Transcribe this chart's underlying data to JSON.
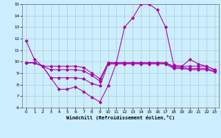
{
  "xlabel": "Windchill (Refroidissement éolien,°C)",
  "xlim": [
    -0.5,
    23.5
  ],
  "ylim": [
    6,
    15
  ],
  "yticks": [
    6,
    7,
    8,
    9,
    10,
    11,
    12,
    13,
    14,
    15
  ],
  "xticks": [
    0,
    1,
    2,
    3,
    4,
    5,
    6,
    7,
    8,
    9,
    10,
    11,
    12,
    13,
    14,
    15,
    16,
    17,
    18,
    19,
    20,
    21,
    22,
    23
  ],
  "background_color": "#cceeff",
  "grid_color": "#aacccc",
  "line_color": "#aa00aa",
  "lines": [
    {
      "x": [
        0,
        1,
        2,
        3,
        4,
        5,
        6,
        7,
        8,
        9,
        10,
        11,
        12,
        13,
        14,
        15,
        16,
        17,
        18,
        19,
        20,
        21,
        22,
        23
      ],
      "y": [
        11.8,
        10.2,
        9.6,
        8.6,
        7.6,
        7.6,
        7.8,
        7.4,
        6.9,
        6.5,
        7.9,
        9.9,
        13.0,
        13.8,
        15.0,
        15.0,
        14.5,
        13.0,
        9.7,
        9.6,
        10.2,
        9.8,
        9.6,
        9.3
      ]
    },
    {
      "x": [
        0,
        1,
        2,
        3,
        4,
        5,
        6,
        7,
        8,
        9,
        10,
        11,
        12,
        13,
        14,
        15,
        16,
        17,
        18,
        19,
        20,
        21,
        22,
        23
      ],
      "y": [
        9.9,
        9.9,
        9.6,
        9.6,
        9.6,
        9.6,
        9.6,
        9.5,
        9.0,
        8.5,
        9.9,
        9.9,
        9.9,
        9.9,
        9.9,
        9.9,
        9.9,
        9.9,
        9.6,
        9.6,
        9.6,
        9.6,
        9.6,
        9.3
      ]
    },
    {
      "x": [
        0,
        1,
        2,
        3,
        4,
        5,
        6,
        7,
        8,
        9,
        10,
        11,
        12,
        13,
        14,
        15,
        16,
        17,
        18,
        19,
        20,
        21,
        22,
        23
      ],
      "y": [
        9.9,
        9.9,
        9.6,
        9.3,
        9.3,
        9.3,
        9.3,
        9.2,
        8.8,
        8.3,
        9.9,
        9.9,
        9.9,
        9.9,
        9.9,
        9.9,
        9.9,
        9.9,
        9.5,
        9.5,
        9.4,
        9.4,
        9.4,
        9.2
      ]
    },
    {
      "x": [
        0,
        1,
        2,
        3,
        4,
        5,
        6,
        7,
        8,
        9,
        10,
        11,
        12,
        13,
        14,
        15,
        16,
        17,
        18,
        19,
        20,
        21,
        22,
        23
      ],
      "y": [
        9.9,
        9.9,
        9.6,
        8.6,
        8.6,
        8.6,
        8.6,
        8.5,
        8.1,
        7.9,
        9.8,
        9.8,
        9.8,
        9.8,
        9.8,
        9.8,
        9.8,
        9.8,
        9.4,
        9.4,
        9.3,
        9.3,
        9.3,
        9.1
      ]
    }
  ]
}
